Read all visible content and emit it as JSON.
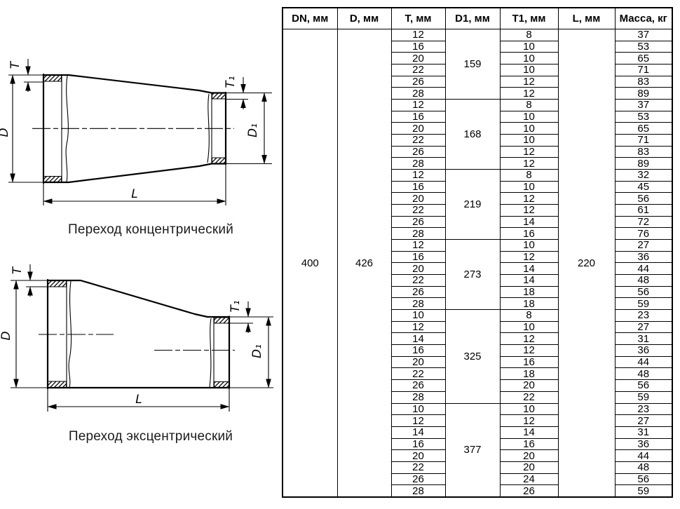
{
  "drawings": {
    "labels": {
      "t": "T",
      "d": "D",
      "t1": "T₁",
      "d1": "D₁",
      "l": "L"
    },
    "concentric_caption": "Переход концентрический",
    "eccentric_caption": "Переход эксцентрический"
  },
  "table": {
    "headers": [
      "DN, мм",
      "D, мм",
      "T, мм",
      "D1, мм",
      "T1, мм",
      "L, мм",
      "Масса, кг"
    ],
    "dn": "400",
    "d": "426",
    "l": "220",
    "groups": [
      {
        "d1": "159",
        "rows": [
          [
            "12",
            "8",
            "37"
          ],
          [
            "16",
            "10",
            "53"
          ],
          [
            "20",
            "10",
            "65"
          ],
          [
            "22",
            "10",
            "71"
          ],
          [
            "26",
            "12",
            "83"
          ],
          [
            "28",
            "12",
            "89"
          ]
        ]
      },
      {
        "d1": "168",
        "rows": [
          [
            "12",
            "8",
            "37"
          ],
          [
            "16",
            "10",
            "53"
          ],
          [
            "20",
            "10",
            "65"
          ],
          [
            "22",
            "10",
            "71"
          ],
          [
            "26",
            "12",
            "83"
          ],
          [
            "28",
            "12",
            "89"
          ]
        ]
      },
      {
        "d1": "219",
        "rows": [
          [
            "12",
            "8",
            "32"
          ],
          [
            "16",
            "10",
            "45"
          ],
          [
            "20",
            "12",
            "56"
          ],
          [
            "22",
            "12",
            "61"
          ],
          [
            "26",
            "14",
            "72"
          ],
          [
            "28",
            "16",
            "76"
          ]
        ]
      },
      {
        "d1": "273",
        "rows": [
          [
            "12",
            "10",
            "27"
          ],
          [
            "16",
            "12",
            "36"
          ],
          [
            "20",
            "14",
            "44"
          ],
          [
            "22",
            "14",
            "48"
          ],
          [
            "26",
            "18",
            "56"
          ],
          [
            "28",
            "18",
            "59"
          ]
        ]
      },
      {
        "d1": "325",
        "rows": [
          [
            "10",
            "8",
            "23"
          ],
          [
            "12",
            "10",
            "27"
          ],
          [
            "14",
            "12",
            "31"
          ],
          [
            "16",
            "12",
            "36"
          ],
          [
            "20",
            "16",
            "44"
          ],
          [
            "22",
            "18",
            "48"
          ],
          [
            "26",
            "20",
            "56"
          ],
          [
            "28",
            "22",
            "59"
          ]
        ]
      },
      {
        "d1": "377",
        "rows": [
          [
            "10",
            "10",
            "23"
          ],
          [
            "12",
            "12",
            "27"
          ],
          [
            "14",
            "14",
            "31"
          ],
          [
            "16",
            "16",
            "36"
          ],
          [
            "20",
            "20",
            "44"
          ],
          [
            "22",
            "20",
            "48"
          ],
          [
            "26",
            "24",
            "56"
          ],
          [
            "28",
            "26",
            "59"
          ]
        ]
      }
    ]
  }
}
